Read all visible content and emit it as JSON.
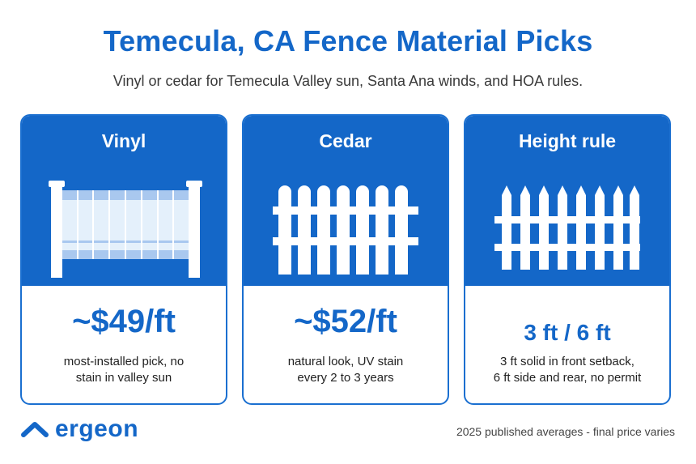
{
  "header": {
    "title": "Temecula, CA Fence Material Picks",
    "subtitle": "Vinyl or cedar for Temecula Valley sun, Santa Ana winds, and HOA rules."
  },
  "cards": [
    {
      "heading": "Vinyl",
      "value": "~$49/ft",
      "note_line1": "most-installed pick, no",
      "note_line2": "stain in valley sun",
      "icon": "vinyl-fence-icon"
    },
    {
      "heading": "Cedar",
      "value": "~$52/ft",
      "note_line1": "natural look, UV stain",
      "note_line2": "every 2 to 3 years",
      "icon": "picket-fence-icon"
    },
    {
      "heading": "Height rule",
      "value": "3 ft / 6 ft",
      "note_line1": "3 ft solid in front setback,",
      "note_line2": "6 ft side and rear, no permit",
      "icon": "pointed-fence-icon"
    }
  ],
  "brand": {
    "name": "ergeon",
    "icon": "ergeon-chevron-logo"
  },
  "footer": {
    "note": "2025 published averages - final price varies"
  },
  "colors": {
    "accent": "#1467c8",
    "text": "#222222",
    "vinyl_panel": "#e4f0fb",
    "vinyl_rail": "#a9c8ef"
  }
}
